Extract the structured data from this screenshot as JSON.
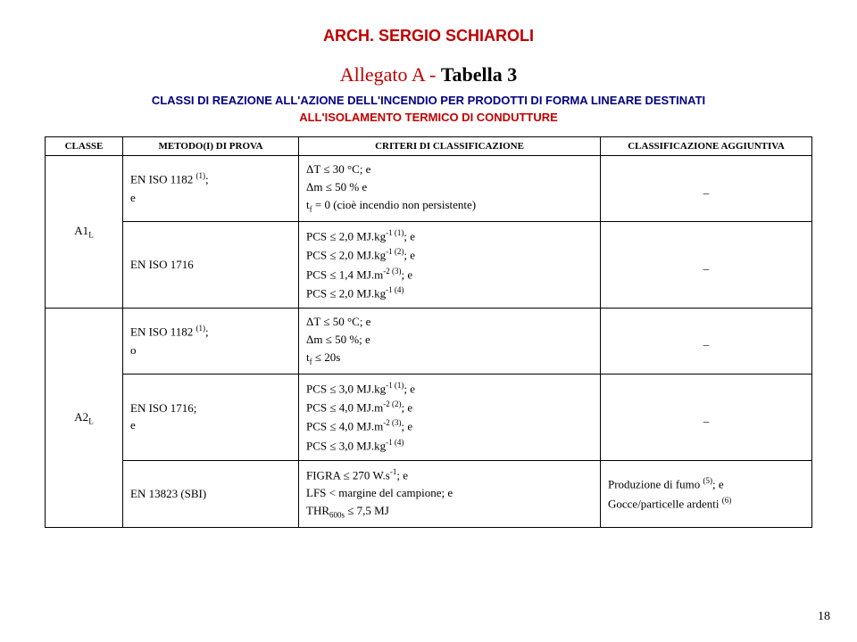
{
  "header": "ARCH. SERGIO SCHIAROLI",
  "title_left": "Allegato A - ",
  "title_right": "Tabella 3",
  "subtitle1": "CLASSI DI REAZIONE ALL'AZIONE DELL'INCENDIO PER PRODOTTI DI FORMA LINEARE DESTINATI",
  "subtitle2": "ALL'ISOLAMENTO TERMICO DI CONDUTTURE",
  "columns": {
    "c1": "CLASSE",
    "c2": "METODO(I) DI PROVA",
    "c3": "CRITERI DI CLASSIFICAZIONE",
    "c4": "CLASSIFICAZIONE AGGIUNTIVA"
  },
  "rows": {
    "r1": {
      "classe": "A1",
      "classe_sub": "L",
      "metodo_a": "EN ISO 1182 ",
      "metodo_a_sup": "(1)",
      "metodo_a_tail": ";",
      "metodo_b": "e",
      "crit1": "ΔT ≤ 30 °C; e",
      "crit2": "Δm ≤ 50 % e",
      "crit3_a": "t",
      "crit3_sub": "f",
      "crit3_b": " = 0 (cioè incendio non persistente)",
      "extra": "_"
    },
    "r2": {
      "metodo": "EN ISO 1716",
      "crit1_a": "PCS ≤ 2,0 MJ.kg",
      "crit1_sup": "-1 (1)",
      "crit1_tail": "; e",
      "crit2_a": "PCS ≤ 2,0 MJ.kg",
      "crit2_sup": "-1 (2)",
      "crit2_tail": "; e",
      "crit3_a": "PCS ≤ 1,4 MJ.m",
      "crit3_sup": "-2 (3)",
      "crit3_tail": "; e",
      "crit4_a": "PCS ≤ 2,0 MJ.kg",
      "crit4_sup": "-1 (4)",
      "extra": "_"
    },
    "r3": {
      "classe": "A2",
      "classe_sub": "L",
      "metodo_a": "EN ISO 1182 ",
      "metodo_a_sup": "(1)",
      "metodo_a_tail": ";",
      "metodo_b": "o",
      "crit1": "ΔT ≤ 50 °C; e",
      "crit2": "Δm ≤ 50 %; e",
      "crit3_a": "t",
      "crit3_sub": "f",
      "crit3_b": " ≤ 20s",
      "extra": "_"
    },
    "r4": {
      "metodo_a": "EN ISO 1716;",
      "metodo_b": "e",
      "crit1_a": "PCS ≤ 3,0 MJ.kg",
      "crit1_sup": "-1 (1)",
      "crit1_tail": "; e",
      "crit2_a": "PCS ≤ 4,0 MJ.m",
      "crit2_sup": "-2 (2)",
      "crit2_tail": "; e",
      "crit3_a": "PCS ≤ 4,0 MJ.m",
      "crit3_sup": "-2 (3)",
      "crit3_tail": "; e",
      "crit4_a": "PCS ≤ 3,0 MJ.kg",
      "crit4_sup": "-1 (4)",
      "extra": "_"
    },
    "r5": {
      "metodo": "EN 13823 (SBI)",
      "crit1_a": "FIGRA ≤ 270 W.s",
      "crit1_sup": "-1",
      "crit1_tail": "; e",
      "crit2": "LFS < margine del campione; e",
      "crit3_a": "THR",
      "crit3_sub": "600s",
      "crit3_b": " ≤ 7,5 MJ",
      "extra1_a": "Produzione di fumo ",
      "extra1_sup": "(5)",
      "extra1_tail": "; e",
      "extra2_a": "Gocce/particelle ardenti ",
      "extra2_sup": "(6)"
    }
  },
  "pagenum": "18"
}
